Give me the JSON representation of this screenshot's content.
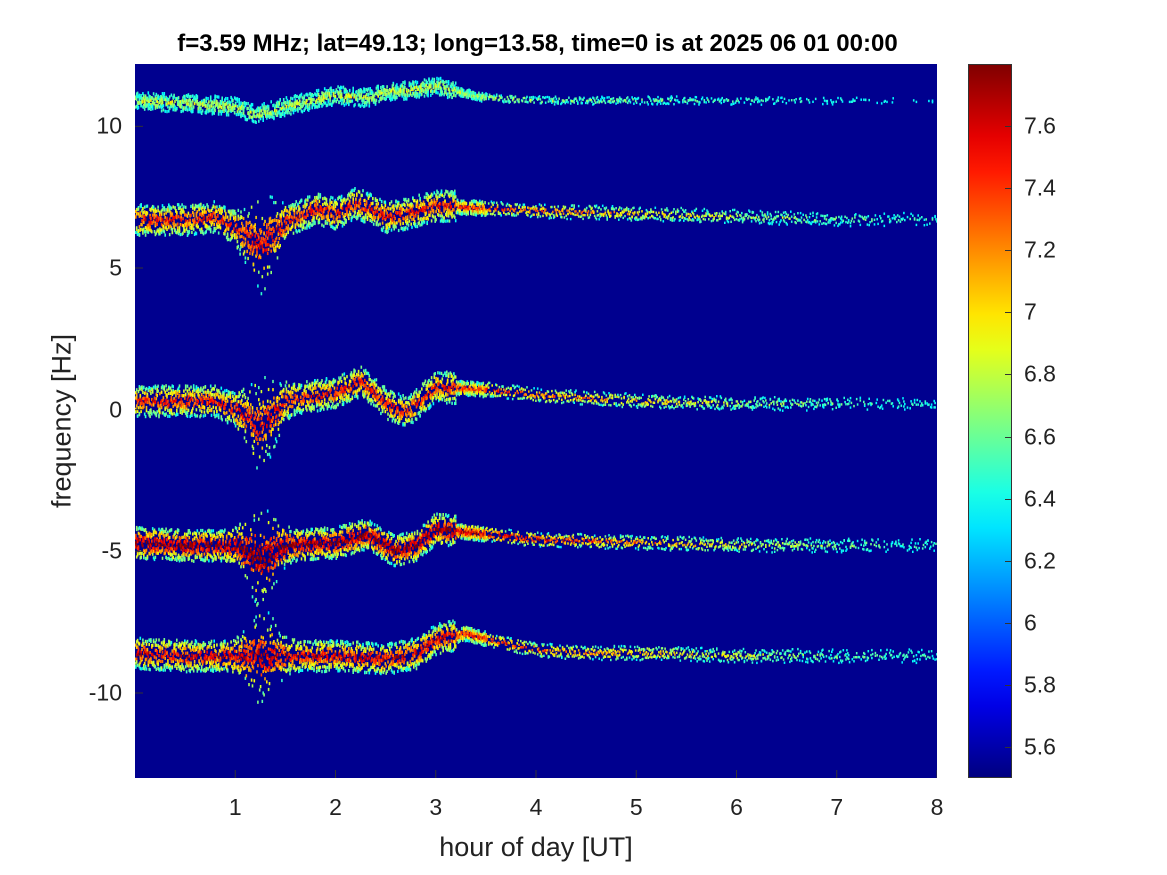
{
  "chart_data": {
    "type": "heatmap",
    "title": "f=3.59 MHz;  lat=49.13; long=13.58, time=0 is at 2025 06 01 00:00",
    "xlabel": "hour of day [UT]",
    "ylabel": "frequency [Hz]",
    "xlim": [
      0,
      8
    ],
    "ylim": [
      -13,
      12.2
    ],
    "xticks": [
      "1",
      "2",
      "3",
      "4",
      "5",
      "6",
      "7",
      "8"
    ],
    "yticks": [
      "10",
      "5",
      "0",
      "-5",
      "-10"
    ],
    "colormap": "jet",
    "colorbar": {
      "range": [
        5.5,
        7.8
      ],
      "ticks": [
        "7.6",
        "7.4",
        "7.2",
        "7",
        "6.8",
        "6.6",
        "6.4",
        "6.2",
        "6",
        "5.8",
        "5.6"
      ]
    },
    "background_color": "#00008f",
    "traces": [
      {
        "base_freq": 10.9,
        "strength": 0.45,
        "x": [
          0,
          0.5,
          1.0,
          1.2,
          1.5,
          2.0,
          2.3,
          2.5,
          3.0,
          3.5,
          4.0,
          5.0,
          6.0,
          7.0,
          8.0
        ],
        "y": [
          10.9,
          10.8,
          10.7,
          10.4,
          10.7,
          11.1,
          11.0,
          11.2,
          11.4,
          11.0,
          10.9,
          10.9,
          10.9,
          10.9,
          10.9
        ]
      },
      {
        "base_freq": 6.7,
        "strength": 0.85,
        "x": [
          0,
          0.5,
          0.8,
          1.0,
          1.25,
          1.5,
          1.8,
          2.0,
          2.2,
          2.5,
          2.7,
          3.0,
          3.5,
          4.0,
          5.0,
          6.0,
          7.0,
          8.0
        ],
        "y": [
          6.7,
          6.7,
          6.8,
          6.4,
          5.8,
          6.6,
          7.1,
          6.9,
          7.3,
          6.8,
          6.9,
          7.2,
          7.1,
          7.0,
          6.9,
          6.8,
          6.7,
          6.7
        ],
        "spread_peak_hour": 1.25
      },
      {
        "base_freq": 0.3,
        "strength": 0.85,
        "x": [
          0,
          0.5,
          0.8,
          1.0,
          1.25,
          1.5,
          1.8,
          2.0,
          2.25,
          2.5,
          2.7,
          3.0,
          3.5,
          4.0,
          5.0,
          6.0,
          7.0,
          8.0
        ],
        "y": [
          0.3,
          0.3,
          0.3,
          0.0,
          -0.6,
          0.3,
          0.5,
          0.6,
          1.0,
          0.2,
          -0.1,
          0.8,
          0.7,
          0.5,
          0.3,
          0.2,
          0.2,
          0.2
        ],
        "spread_peak_hour": 1.25
      },
      {
        "base_freq": -4.8,
        "strength": 1.0,
        "x": [
          0,
          0.5,
          1.0,
          1.25,
          1.5,
          2.0,
          2.3,
          2.6,
          2.8,
          3.0,
          3.5,
          4.0,
          5.0,
          6.0,
          7.0,
          8.0
        ],
        "y": [
          -4.7,
          -4.8,
          -4.8,
          -5.3,
          -4.8,
          -4.7,
          -4.4,
          -5.0,
          -4.8,
          -4.2,
          -4.4,
          -4.6,
          -4.7,
          -4.8,
          -4.8,
          -4.8
        ],
        "spread_peak_hour": 1.25
      },
      {
        "base_freq": -8.7,
        "strength": 0.9,
        "x": [
          0,
          0.5,
          1.0,
          1.5,
          2.0,
          2.5,
          2.8,
          3.0,
          3.3,
          3.6,
          4.0,
          4.5,
          5.0,
          6.0,
          7.0,
          8.0
        ],
        "y": [
          -8.6,
          -8.7,
          -8.7,
          -8.7,
          -8.7,
          -8.8,
          -8.6,
          -8.1,
          -7.9,
          -8.2,
          -8.5,
          -8.6,
          -8.6,
          -8.7,
          -8.7,
          -8.7
        ],
        "spread_peak_hour": 1.25
      }
    ]
  }
}
